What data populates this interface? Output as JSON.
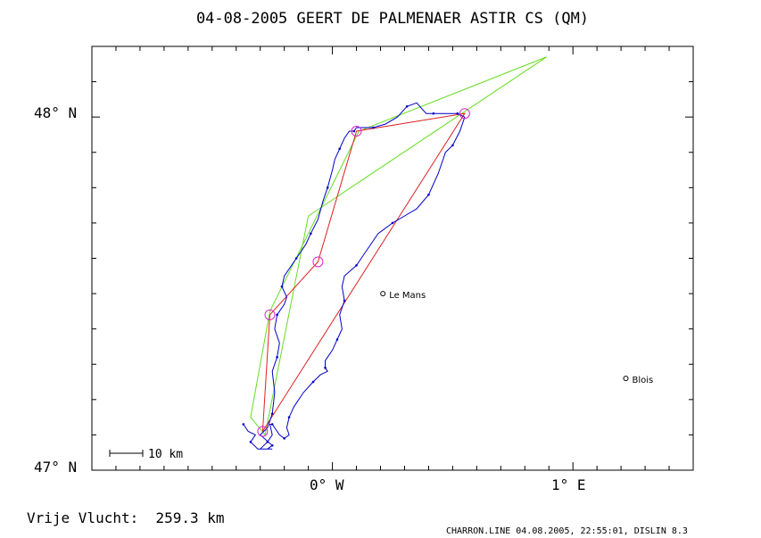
{
  "chart_data": {
    "type": "line",
    "title": "04-08-2005   GEERT DE PALMENAER   ASTIR CS (QM)",
    "xlabel": "",
    "ylabel": "",
    "xlim": [
      -1.0,
      1.5
    ],
    "ylim": [
      47.0,
      48.2
    ],
    "xtick_major": [
      {
        "value": 0,
        "label": "0° W"
      },
      {
        "value": 1,
        "label": "1° E"
      }
    ],
    "ytick_major": [
      {
        "value": 47,
        "label": "47° N"
      },
      {
        "value": 48,
        "label": "48° N"
      }
    ],
    "grid": false,
    "series": [
      {
        "role": "declared-task",
        "color": "#66dd22",
        "x": [
          -0.28,
          -0.1,
          0.89,
          0.11,
          -0.26,
          -0.34,
          -0.28
        ],
        "y": [
          47.1,
          47.72,
          48.17,
          47.96,
          47.45,
          47.15,
          47.1
        ]
      },
      {
        "role": "scored-task",
        "color": "#dd2222",
        "x": [
          -0.29,
          -0.26,
          -0.06,
          0.1,
          0.55,
          -0.29
        ],
        "y": [
          47.11,
          47.44,
          47.59,
          47.96,
          48.01,
          47.11
        ]
      },
      {
        "role": "gps-track",
        "color": "#0000cc",
        "x": [
          -0.37,
          -0.35,
          -0.32,
          -0.34,
          -0.31,
          -0.27,
          -0.25,
          -0.3,
          -0.27,
          -0.25,
          -0.24,
          -0.25,
          -0.23,
          -0.22,
          -0.24,
          -0.23,
          -0.2,
          -0.19,
          -0.21,
          -0.2,
          -0.17,
          -0.15,
          -0.13,
          -0.11,
          -0.09,
          -0.06,
          -0.04,
          -0.02,
          0,
          0.01,
          0.03,
          0.05,
          0.07,
          0.09,
          0.1,
          0.12,
          0.17,
          0.22,
          0.27,
          0.31,
          0.35,
          0.39,
          0.42,
          0.45,
          0.49,
          0.52,
          0.55,
          0.53,
          0.5,
          0.47,
          0.44,
          0.4,
          0.35,
          0.3,
          0.25,
          0.19,
          0.14,
          0.1,
          0.05,
          0.04,
          0.05,
          0.03,
          0.04,
          0.02,
          0,
          -0.03,
          -0.03,
          -0.02,
          -0.05,
          -0.08,
          -0.12,
          -0.16,
          -0.18,
          -0.19,
          -0.18,
          -0.2,
          -0.22,
          -0.24,
          -0.25,
          -0.26,
          -0.25,
          -0.27,
          -0.3,
          -0.25
        ],
        "y": [
          47.13,
          47.11,
          47.1,
          47.08,
          47.06,
          47.06,
          47.07,
          47.1,
          47.12,
          47.16,
          47.22,
          47.28,
          47.32,
          47.36,
          47.4,
          47.44,
          47.47,
          47.49,
          47.52,
          47.55,
          47.58,
          47.6,
          47.62,
          47.64,
          47.67,
          47.71,
          47.76,
          47.8,
          47.85,
          47.88,
          47.91,
          47.94,
          47.96,
          47.96,
          47.97,
          47.97,
          47.97,
          47.98,
          48,
          48.03,
          48.04,
          48.01,
          48.01,
          48.01,
          48.01,
          48.01,
          48,
          47.96,
          47.92,
          47.9,
          47.84,
          47.78,
          47.74,
          47.72,
          47.7,
          47.67,
          47.62,
          47.58,
          47.55,
          47.52,
          47.48,
          47.44,
          47.4,
          47.37,
          47.34,
          47.31,
          47.29,
          47.28,
          47.27,
          47.25,
          47.22,
          47.18,
          47.15,
          47.12,
          47.1,
          47.09,
          47.1,
          47.12,
          47.13,
          47.13,
          47.1,
          47.08,
          47.06,
          47.06
        ]
      }
    ],
    "turnpoints": [
      {
        "x": -0.26,
        "y": 47.44
      },
      {
        "x": -0.06,
        "y": 47.59
      },
      {
        "x": 0.1,
        "y": 47.96
      },
      {
        "x": 0.55,
        "y": 48.01
      },
      {
        "x": -0.29,
        "y": 47.11
      }
    ],
    "places": [
      {
        "x": 0.21,
        "y": 47.5,
        "label": "Le Mans"
      },
      {
        "x": 1.22,
        "y": 47.26,
        "label": "Blois"
      }
    ],
    "scale_bar_label": "10 km",
    "annotation_left": "Vrije Vlucht:  259.3 km",
    "annotation_right": "CHARRON.LINE 04.08.2005, 22:55:01, DISLIN 8.3"
  }
}
